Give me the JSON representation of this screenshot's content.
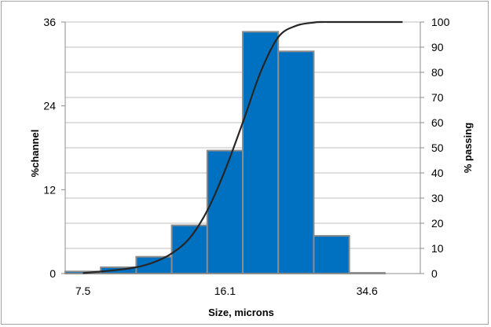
{
  "chart_data": {
    "type": "bar",
    "title": "",
    "xlabel": "Size, microns",
    "ylabel_left": "%channel",
    "ylabel_right": "% passing",
    "x_tick_labels": [
      {
        "x": 7.5,
        "label": "7.5"
      },
      {
        "x": 16.1,
        "label": "16.1"
      },
      {
        "x": 34.6,
        "label": "34.6"
      }
    ],
    "ylim_left": [
      0,
      36
    ],
    "yticks_left": [
      "0",
      "12",
      "24",
      "36"
    ],
    "ylim_right": [
      0,
      100
    ],
    "yticks_right": [
      "0",
      "10",
      "20",
      "30",
      "40",
      "50",
      "60",
      "70",
      "80",
      "90",
      "100"
    ],
    "xlim": [
      0,
      10
    ],
    "bar_color": "#0070c0",
    "bar_edge_color": "#8c8c8c",
    "line_color": "#262626",
    "grid": true,
    "legend": "none",
    "bars": [
      {
        "bin": 0,
        "value": 0.3
      },
      {
        "bin": 1,
        "value": 0.9
      },
      {
        "bin": 2,
        "value": 2.4
      },
      {
        "bin": 3,
        "value": 6.9
      },
      {
        "bin": 4,
        "value": 17.6
      },
      {
        "bin": 5,
        "value": 34.6
      },
      {
        "bin": 6,
        "value": 31.8
      },
      {
        "bin": 7,
        "value": 5.4
      },
      {
        "bin": 8,
        "value": 0.1
      }
    ],
    "series": [
      {
        "type": "line",
        "axis": "right",
        "x": [
          0.5,
          1.0,
          1.5,
          2.0,
          2.5,
          3.0,
          3.5,
          4.0,
          4.5,
          5.0,
          5.5,
          6.0,
          6.5,
          7.0,
          7.25,
          7.5,
          8.0,
          8.5,
          9.0,
          9.5
        ],
        "y": [
          0.2,
          0.8,
          1.5,
          2.5,
          4.5,
          8.0,
          14.0,
          25.0,
          41.0,
          60.0,
          80.0,
          94.0,
          98.5,
          99.8,
          100,
          100,
          100,
          100,
          100,
          100
        ]
      }
    ]
  }
}
